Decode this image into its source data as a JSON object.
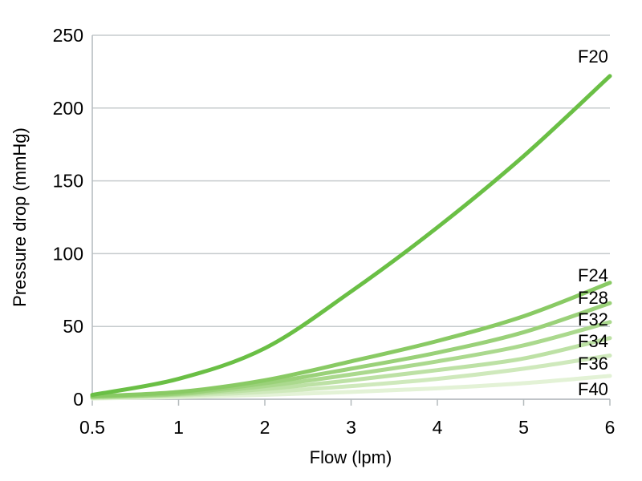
{
  "figure": {
    "background": "#ffffff"
  },
  "chart_data": {
    "type": "line",
    "title": "",
    "xlabel": "Flow (lpm)",
    "ylabel": "Pressure drop (mmHg)",
    "x_axis": {
      "scale": "category",
      "tick_labels": [
        "0.5",
        "1",
        "2",
        "3",
        "4",
        "5",
        "6"
      ],
      "values": [
        0.5,
        1,
        2,
        3,
        4,
        5,
        6
      ]
    },
    "y_axis": {
      "min": 0,
      "max": 250,
      "ticks": [
        0,
        50,
        100,
        150,
        200,
        250
      ]
    },
    "grid": {
      "horizontal": true,
      "vertical": false,
      "color": "#c6cbcd"
    },
    "axis_color": "#b4babd",
    "text_color": "#000000",
    "legend_position": "end-of-line-labels",
    "series": [
      {
        "name": "F20",
        "color": "#6abf45",
        "values": [
          3,
          14,
          35,
          74,
          118,
          167,
          222
        ]
      },
      {
        "name": "F24",
        "color": "#89ca64",
        "values": [
          2,
          5,
          13,
          26,
          40,
          57,
          80
        ]
      },
      {
        "name": "F28",
        "color": "#9ad179",
        "values": [
          2,
          4,
          11,
          21,
          32,
          46,
          66
        ]
      },
      {
        "name": "F32",
        "color": "#abd98e",
        "values": [
          1.5,
          3.5,
          9,
          17,
          26,
          37,
          53
        ]
      },
      {
        "name": "F34",
        "color": "#bde1a5",
        "values": [
          1,
          3,
          7,
          13,
          20,
          28,
          42
        ]
      },
      {
        "name": "F36",
        "color": "#cfe9bc",
        "values": [
          1,
          2.5,
          5,
          9,
          14,
          21,
          30
        ]
      },
      {
        "name": "F40",
        "color": "#e3f2d6",
        "values": [
          0.5,
          1.5,
          3,
          5,
          7.5,
          11,
          16
        ]
      }
    ]
  }
}
